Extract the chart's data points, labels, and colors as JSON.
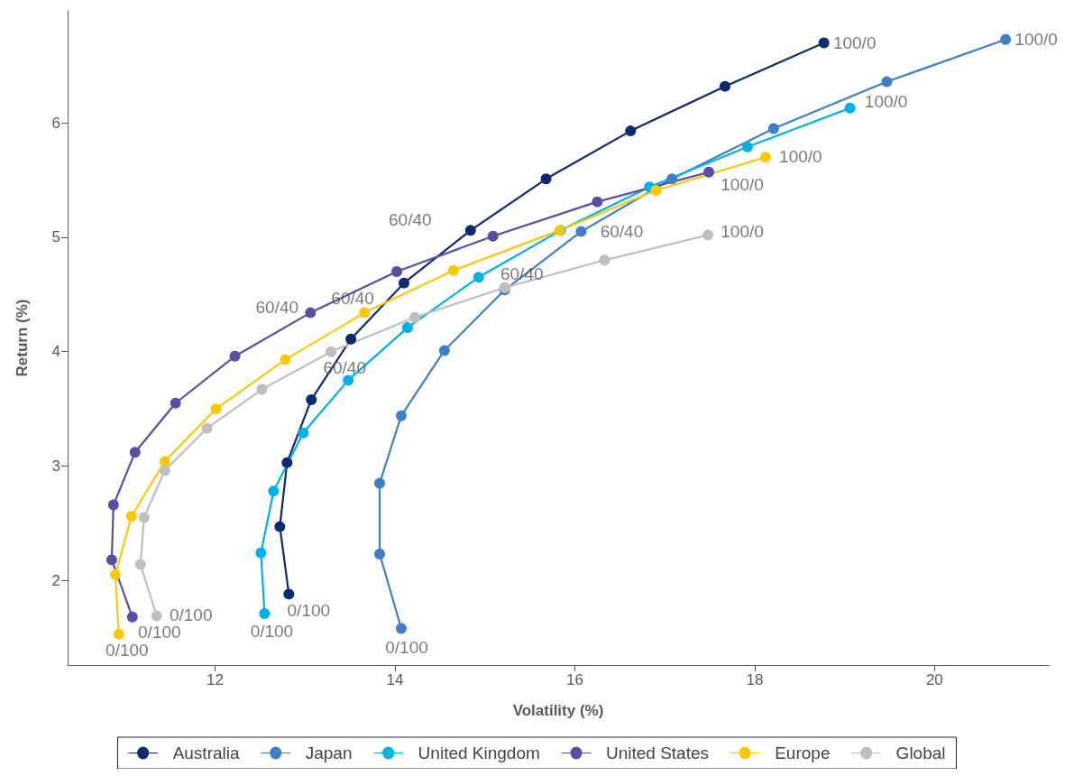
{
  "chart_data": {
    "type": "line",
    "xlabel": "Volatility (%)",
    "ylabel": "Return (%)",
    "xlim": [
      10.36,
      21.27
    ],
    "xticks": [
      12,
      14,
      16,
      18,
      20
    ],
    "ylim": [
      1.26,
      6.98
    ],
    "yticks": [
      2,
      3,
      4,
      5,
      6
    ],
    "grid": false,
    "legend": "bottom",
    "marker": "circle",
    "line_style": "solid",
    "series": [
      {
        "name": "Australia",
        "color": "#0d2a6e",
        "x": [
          12.82,
          12.72,
          12.8,
          13.07,
          13.51,
          14.1,
          14.84,
          15.68,
          16.62,
          17.67,
          18.77
        ],
        "values": [
          1.88,
          2.47,
          3.03,
          3.58,
          4.11,
          4.6,
          5.06,
          5.51,
          5.93,
          6.32,
          6.7
        ]
      },
      {
        "name": "Japan",
        "color": "#3f7fc4",
        "x": [
          14.07,
          13.83,
          13.83,
          14.07,
          14.55,
          15.22,
          16.07,
          17.08,
          18.21,
          19.47,
          20.79
        ],
        "values": [
          1.58,
          2.23,
          2.85,
          3.44,
          4.01,
          4.54,
          5.05,
          5.51,
          5.95,
          6.36,
          6.73
        ]
      },
      {
        "name": "United Kingdom",
        "color": "#00b0e6",
        "x": [
          12.55,
          12.51,
          12.65,
          12.98,
          13.48,
          14.14,
          14.93,
          15.84,
          16.83,
          17.92,
          19.06
        ],
        "values": [
          1.71,
          2.24,
          2.78,
          3.29,
          3.75,
          4.21,
          4.65,
          5.06,
          5.44,
          5.79,
          6.13
        ]
      },
      {
        "name": "United States",
        "color": "#5b4ea3",
        "x": [
          11.08,
          10.85,
          10.87,
          11.11,
          11.56,
          12.22,
          13.06,
          14.02,
          15.09,
          16.25,
          17.49
        ],
        "values": [
          1.68,
          2.18,
          2.66,
          3.12,
          3.55,
          3.96,
          4.34,
          4.7,
          5.01,
          5.31,
          5.57
        ]
      },
      {
        "name": "Europe",
        "color": "#f9c80e",
        "x": [
          10.93,
          10.89,
          11.07,
          11.44,
          12.01,
          12.78,
          13.66,
          14.65,
          15.83,
          16.9,
          18.12
        ],
        "values": [
          1.53,
          2.05,
          2.56,
          3.04,
          3.5,
          3.93,
          4.34,
          4.71,
          5.06,
          5.41,
          5.7
        ]
      },
      {
        "name": "Global",
        "color": "#bfbfbf",
        "x": [
          11.35,
          11.17,
          11.21,
          11.44,
          11.91,
          12.52,
          13.29,
          14.22,
          15.22,
          16.33,
          17.48
        ],
        "values": [
          1.69,
          2.14,
          2.55,
          2.96,
          3.33,
          3.67,
          4.0,
          4.3,
          4.56,
          4.8,
          5.02
        ]
      }
    ],
    "annotations": [
      {
        "text": "0/100",
        "x": 12.82,
        "y": 1.88
      },
      {
        "text": "60/40",
        "x": 14.84,
        "y": 5.06
      },
      {
        "text": "100/0",
        "x": 18.77,
        "y": 6.7
      },
      {
        "text": "0/100",
        "x": 14.07,
        "y": 1.58
      },
      {
        "text": "60/40",
        "x": 16.07,
        "y": 5.05
      },
      {
        "text": "100/0",
        "x": 20.79,
        "y": 6.73
      },
      {
        "text": "0/100",
        "x": 12.55,
        "y": 1.71
      },
      {
        "text": "60/40",
        "x": 14.93,
        "y": 4.65
      },
      {
        "text": "100/0",
        "x": 19.06,
        "y": 6.13
      },
      {
        "text": "0/100",
        "x": 11.08,
        "y": 1.68
      },
      {
        "text": "60/40",
        "x": 13.06,
        "y": 4.34
      },
      {
        "text": "100/0",
        "x": 17.49,
        "y": 5.57
      },
      {
        "text": "0/100",
        "x": 10.93,
        "y": 1.53
      },
      {
        "text": "60/40",
        "x": 13.66,
        "y": 4.34
      },
      {
        "text": "100/0",
        "x": 18.12,
        "y": 5.7
      },
      {
        "text": "0/100",
        "x": 11.35,
        "y": 1.69
      },
      {
        "text": "60/40",
        "x": 13.29,
        "y": 4.0
      },
      {
        "text": "100/0",
        "x": 17.48,
        "y": 5.02
      }
    ]
  }
}
